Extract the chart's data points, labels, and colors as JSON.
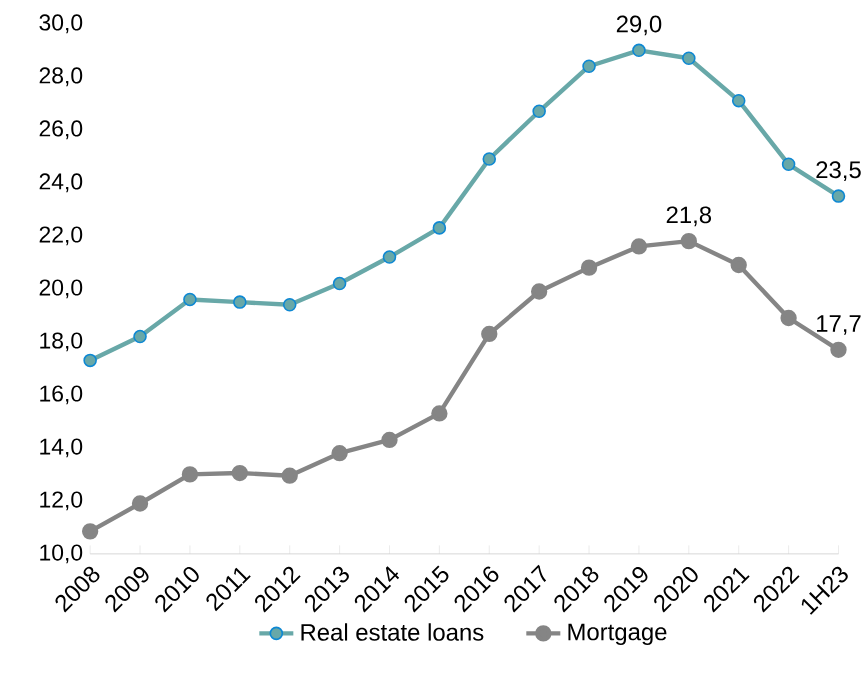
{
  "chart_data": {
    "type": "line",
    "categories": [
      "2008",
      "2009",
      "2010",
      "2011",
      "2012",
      "2013",
      "2014",
      "2015",
      "2016",
      "2017",
      "2018",
      "2019",
      "2020",
      "2021",
      "2022",
      "1H23"
    ],
    "series": [
      {
        "name": "Real estate loans",
        "color": "#68a8a8",
        "values": [
          17.3,
          18.2,
          19.6,
          19.5,
          19.4,
          20.2,
          21.2,
          22.3,
          24.9,
          26.7,
          28.4,
          29.0,
          28.7,
          27.1,
          24.7,
          23.5
        ],
        "value_labels": [
          null,
          null,
          null,
          null,
          null,
          null,
          null,
          null,
          null,
          null,
          null,
          "29,0",
          null,
          null,
          null,
          "23,5"
        ]
      },
      {
        "name": "Mortgage",
        "color": "#858585",
        "values": [
          10.85,
          11.9,
          13.0,
          13.05,
          12.95,
          13.8,
          14.3,
          15.3,
          18.3,
          19.9,
          20.8,
          21.6,
          21.8,
          20.9,
          18.9,
          17.7
        ],
        "value_labels": [
          null,
          null,
          null,
          null,
          null,
          null,
          null,
          null,
          null,
          null,
          null,
          null,
          "21,8",
          null,
          null,
          "17,7"
        ]
      }
    ],
    "ylim": [
      10,
      30
    ],
    "yticks": [
      {
        "value": 10,
        "label": "10,0"
      },
      {
        "value": 12,
        "label": "12,0"
      },
      {
        "value": 14,
        "label": "14,0"
      },
      {
        "value": 16,
        "label": "16,0"
      },
      {
        "value": 18,
        "label": "18,0"
      },
      {
        "value": 20,
        "label": "20,0"
      },
      {
        "value": 22,
        "label": "22,0"
      },
      {
        "value": 24,
        "label": "24,0"
      },
      {
        "value": 26,
        "label": "26,0"
      },
      {
        "value": 28,
        "label": "28,0"
      },
      {
        "value": 30,
        "label": "30,0"
      }
    ],
    "legend": "bottom",
    "marker": "circle",
    "line_style": "solid"
  }
}
